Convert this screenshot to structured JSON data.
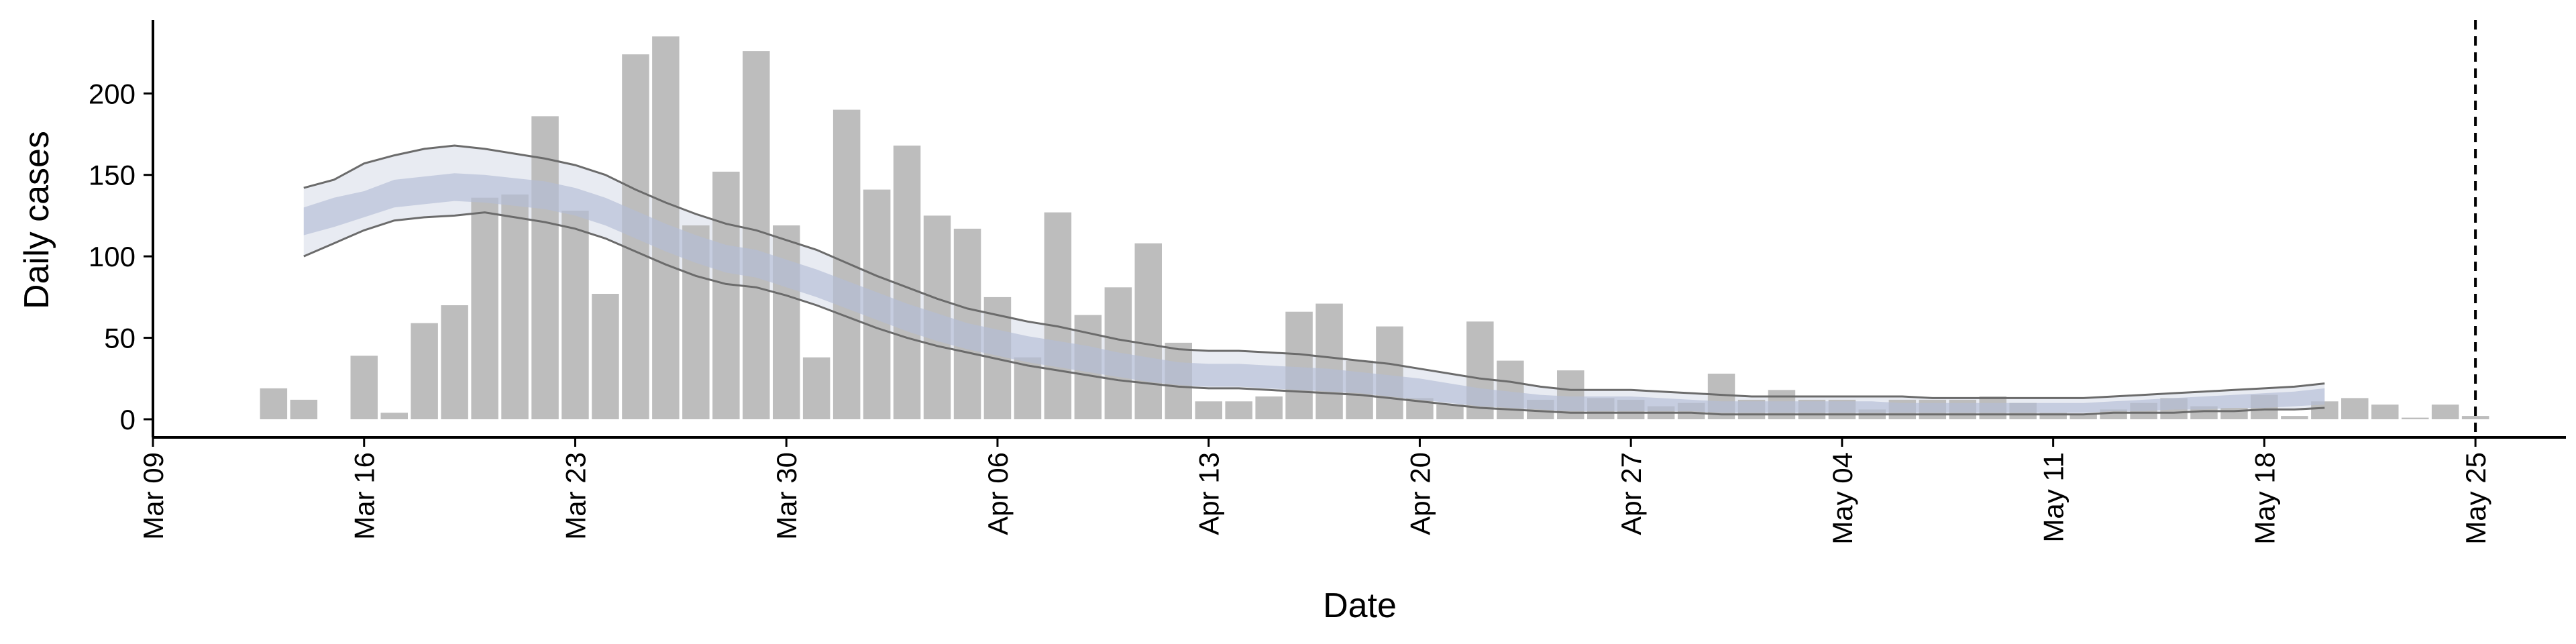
{
  "chart_data": {
    "type": "bar",
    "xlabel": "Date",
    "ylabel": "Daily cases",
    "xlim": [
      "2020-03-09",
      "2020-05-28"
    ],
    "ylim": [
      0,
      245
    ],
    "x_ticks": [
      {
        "date": "2020-03-09",
        "label": "Mar 09"
      },
      {
        "date": "2020-03-16",
        "label": "Mar 16"
      },
      {
        "date": "2020-03-23",
        "label": "Mar 23"
      },
      {
        "date": "2020-03-30",
        "label": "Mar 30"
      },
      {
        "date": "2020-04-06",
        "label": "Apr 06"
      },
      {
        "date": "2020-04-13",
        "label": "Apr 13"
      },
      {
        "date": "2020-04-20",
        "label": "Apr 20"
      },
      {
        "date": "2020-04-27",
        "label": "Apr 27"
      },
      {
        "date": "2020-05-04",
        "label": "May 04"
      },
      {
        "date": "2020-05-11",
        "label": "May 11"
      },
      {
        "date": "2020-05-18",
        "label": "May 18"
      },
      {
        "date": "2020-05-25",
        "label": "May 25"
      }
    ],
    "y_ticks": [
      0,
      50,
      100,
      150,
      200
    ],
    "grid": false,
    "legend": "none",
    "colors": {
      "bars": "#bdbdbd",
      "band_outer": "#e4e7f0",
      "band_inner": "#b4bdd6",
      "band_lines": "#6b6b6b",
      "vline": "#000000"
    },
    "reference_line": {
      "date": "2020-05-25",
      "style": "dashed"
    },
    "daily_cases": {
      "start_date": "2020-03-13",
      "values": [
        19,
        12,
        0,
        39,
        4,
        59,
        70,
        136,
        138,
        186,
        128,
        77,
        224,
        235,
        119,
        152,
        226,
        119,
        38,
        190,
        141,
        168,
        125,
        117,
        75,
        38,
        127,
        64,
        81,
        108,
        47,
        11,
        11,
        14,
        66,
        71,
        36,
        57,
        13,
        9,
        60,
        36,
        12,
        30,
        13,
        12,
        8,
        10,
        28,
        12,
        18,
        12,
        12,
        6,
        12,
        12,
        12,
        14,
        10,
        4,
        3,
        6,
        10,
        13,
        8,
        7,
        15,
        2,
        11,
        13,
        9,
        1,
        9,
        2
      ]
    },
    "estimate_band": {
      "start_date": "2020-03-14",
      "upper_outer": [
        142,
        147,
        157,
        162,
        166,
        168,
        166,
        163,
        160,
        156,
        150,
        141,
        133,
        126,
        120,
        116,
        110,
        104,
        96,
        88,
        81,
        74,
        68,
        64,
        60,
        57,
        53,
        49,
        46,
        43,
        42,
        42,
        41,
        40,
        38,
        36,
        34,
        31,
        28,
        25,
        23,
        20,
        18,
        18,
        18,
        17,
        16,
        15,
        14,
        14,
        14,
        14,
        14,
        14,
        13,
        13,
        13,
        13,
        13,
        13,
        14,
        15,
        16,
        17,
        18,
        19,
        20,
        22
      ],
      "upper_inner": [
        130,
        136,
        140,
        147,
        149,
        151,
        150,
        148,
        146,
        142,
        136,
        128,
        120,
        113,
        107,
        104,
        98,
        92,
        85,
        78,
        71,
        65,
        59,
        55,
        51,
        48,
        45,
        41,
        38,
        35,
        34,
        34,
        33,
        32,
        31,
        29,
        27,
        25,
        22,
        19,
        17,
        15,
        14,
        14,
        14,
        13,
        12,
        11,
        11,
        11,
        11,
        11,
        11,
        10,
        10,
        10,
        10,
        10,
        10,
        10,
        11,
        12,
        13,
        14,
        15,
        16,
        17,
        19
      ],
      "lower_inner": [
        113,
        118,
        124,
        130,
        132,
        134,
        133,
        131,
        129,
        125,
        119,
        111,
        103,
        96,
        90,
        87,
        81,
        75,
        68,
        61,
        54,
        48,
        43,
        39,
        35,
        32,
        29,
        26,
        23,
        21,
        20,
        20,
        19,
        18,
        17,
        16,
        14,
        12,
        10,
        8,
        7,
        6,
        5,
        5,
        5,
        5,
        5,
        4,
        4,
        4,
        4,
        4,
        4,
        4,
        4,
        4,
        4,
        4,
        4,
        4,
        5,
        5,
        6,
        6,
        7,
        7,
        8,
        9
      ],
      "lower_outer": [
        100,
        108,
        116,
        122,
        124,
        125,
        127,
        124,
        121,
        117,
        111,
        103,
        95,
        88,
        83,
        81,
        76,
        70,
        63,
        56,
        50,
        45,
        41,
        37,
        33,
        30,
        27,
        24,
        22,
        20,
        19,
        19,
        18,
        17,
        16,
        15,
        13,
        11,
        9,
        7,
        6,
        5,
        4,
        4,
        4,
        4,
        4,
        3,
        3,
        3,
        3,
        3,
        3,
        3,
        3,
        3,
        3,
        3,
        3,
        3,
        4,
        4,
        4,
        5,
        5,
        6,
        6,
        7
      ]
    }
  }
}
